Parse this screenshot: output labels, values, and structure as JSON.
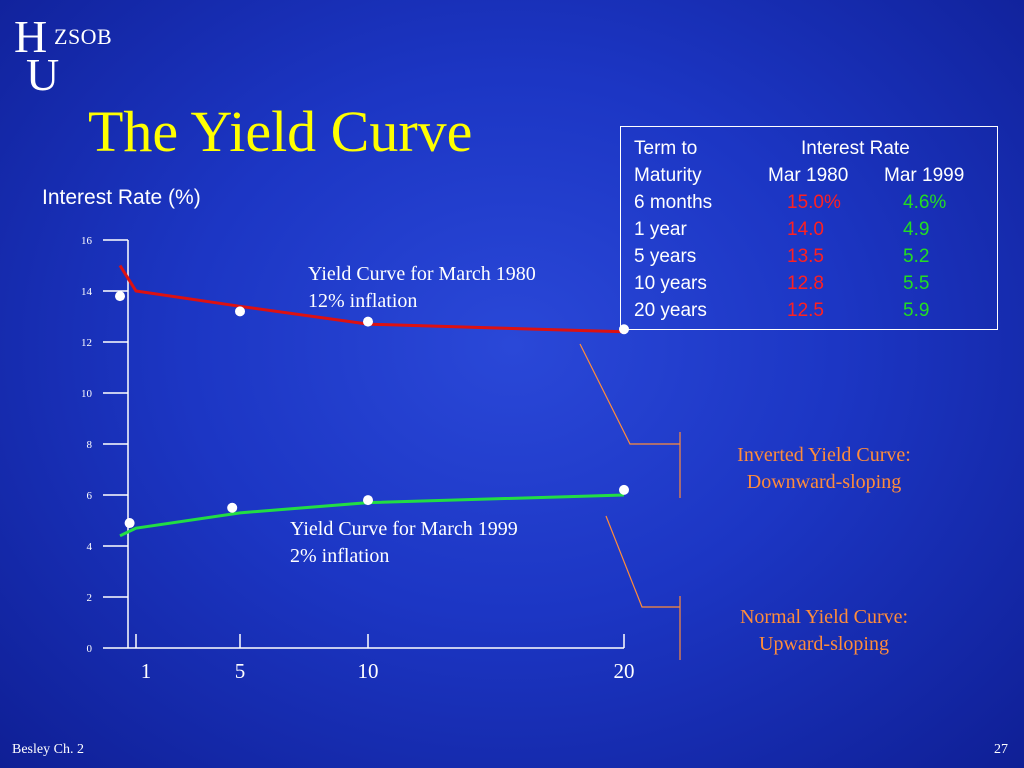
{
  "logo": {
    "letter_h": "H",
    "letter_u": "U",
    "text": "ZSOB"
  },
  "slide": {
    "title": "The Yield Curve",
    "footer_left": "Besley Ch. 2",
    "page_number": "27"
  },
  "table": {
    "header1": {
      "col1": "Term to",
      "col2": "Interest Rate"
    },
    "header2": {
      "col1": "Maturity",
      "col2": "Mar 1980",
      "col3": "Mar 1999"
    },
    "rows": [
      {
        "term": "6 months",
        "r1980": "15.0%",
        "r1999": "4.6%"
      },
      {
        "term": "1 year",
        "r1980": "14.0",
        "r1999": "4.9"
      },
      {
        "term": "5 years",
        "r1980": "13.5",
        "r1999": "5.2"
      },
      {
        "term": "10 years",
        "r1980": "12.8",
        "r1999": "5.5"
      },
      {
        "term": "20 years",
        "r1980": "12.5",
        "r1999": "5.9"
      }
    ],
    "colors": {
      "r1980": "#ff2020",
      "r1999": "#22dd22"
    }
  },
  "annotations": {
    "curve1980": [
      "Yield Curve for March 1980",
      "12% inflation"
    ],
    "curve1999": [
      "Yield Curve for March 1999",
      "2% inflation"
    ],
    "inverted": [
      "Inverted Yield Curve:",
      "Downward-sloping"
    ],
    "normal": [
      "Normal Yield Curve:",
      "Upward-sloping"
    ]
  },
  "chart_data": {
    "type": "line",
    "ylabel": "Interest Rate (%)",
    "ylim": [
      0,
      16
    ],
    "yticks": [
      "0",
      "2",
      "4",
      "6",
      "8",
      "10",
      "12",
      "14",
      "16"
    ],
    "xtick_labels": [
      "1",
      "5",
      "10",
      "20"
    ],
    "xticks": [
      1,
      5,
      10,
      20
    ],
    "series": [
      {
        "color": "#dd1111",
        "line": [
          [
            0.5,
            15.0
          ],
          [
            1,
            14.0
          ],
          [
            5,
            13.4
          ],
          [
            10,
            12.7
          ],
          [
            20,
            12.4
          ]
        ],
        "points": [
          [
            0.5,
            13.8
          ],
          [
            5,
            13.2
          ],
          [
            10,
            12.8
          ],
          [
            20,
            12.5
          ]
        ]
      },
      {
        "color": "#22dd44",
        "line": [
          [
            0.5,
            4.4
          ],
          [
            1,
            4.7
          ],
          [
            5,
            5.3
          ],
          [
            10,
            5.7
          ],
          [
            20,
            6.0
          ]
        ],
        "points": [
          [
            0.8,
            4.9
          ],
          [
            4.7,
            5.5
          ],
          [
            10,
            5.8
          ],
          [
            20,
            6.2
          ]
        ]
      }
    ],
    "marker_color": "#ffffff",
    "grid": false,
    "legend": "none"
  }
}
